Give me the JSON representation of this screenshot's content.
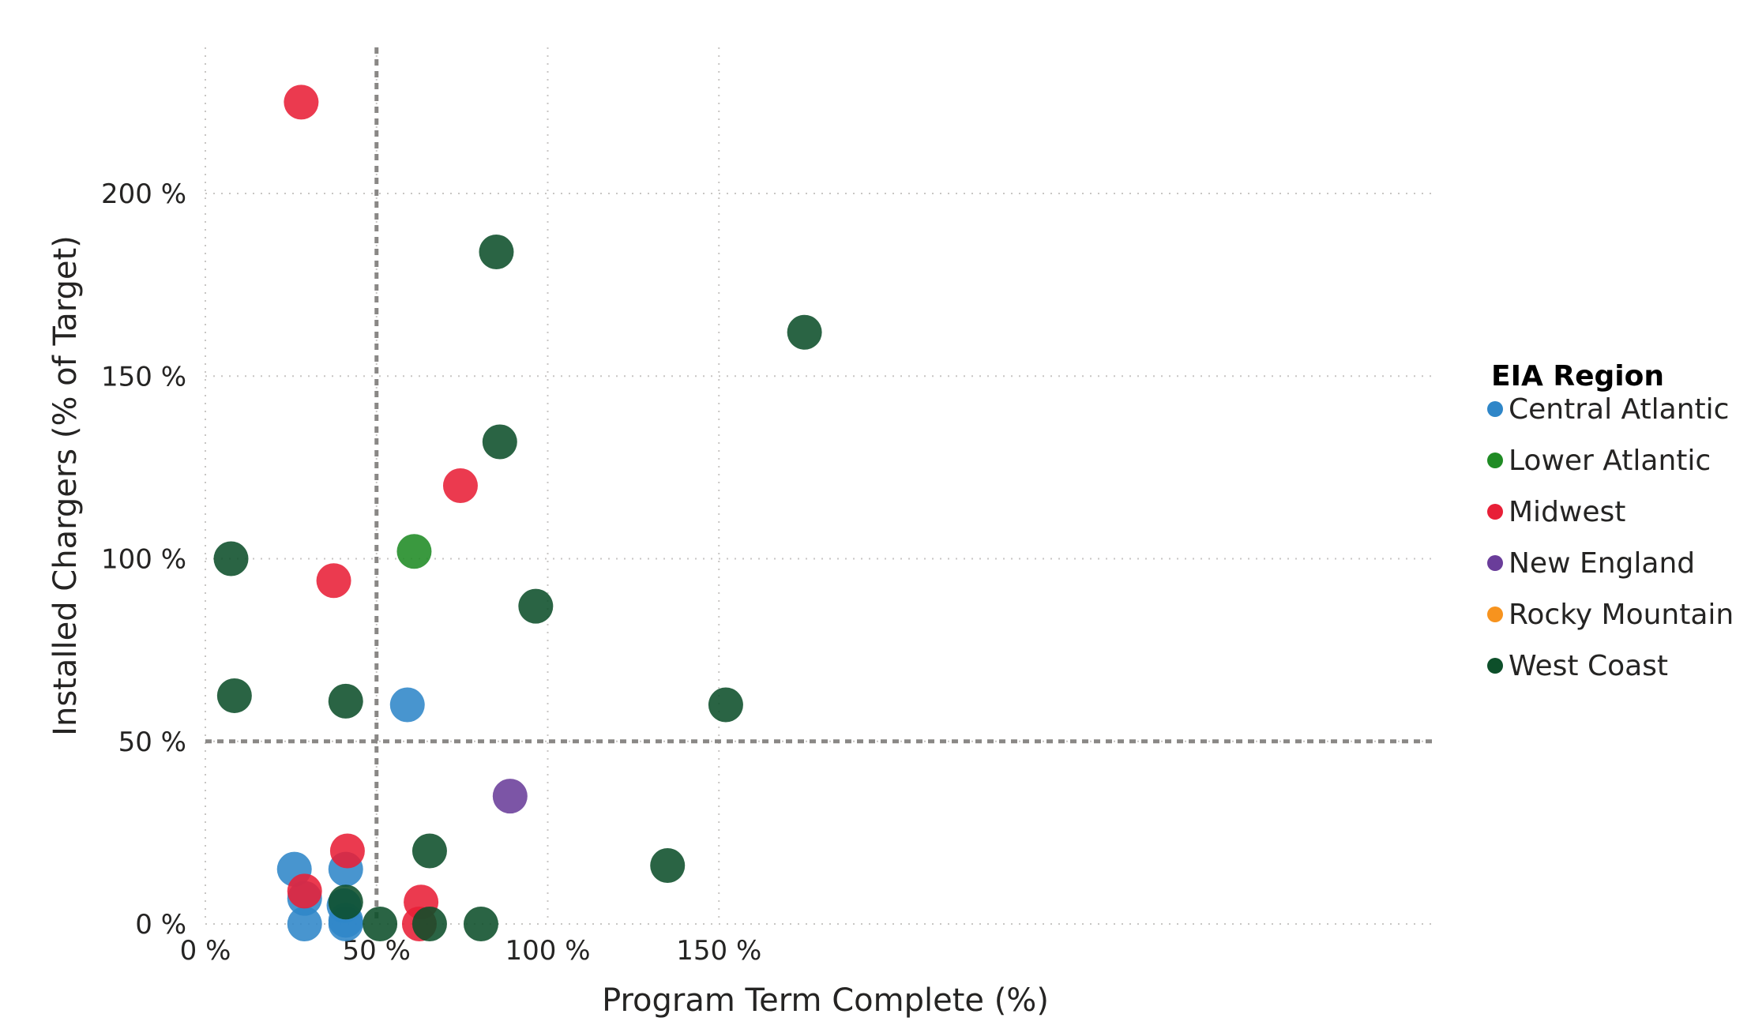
{
  "chart_data": {
    "type": "scatter",
    "title": "",
    "xlabel": "Program Term Complete (%)",
    "ylabel": "Installed Chargers (% of Target)",
    "xlim": [
      0,
      180
    ],
    "ylim": [
      0,
      240
    ],
    "x_ticks": [
      0,
      50,
      100,
      150
    ],
    "y_ticks": [
      0,
      50,
      100,
      150,
      200
    ],
    "x_tick_labels": [
      "0 %",
      "50 %",
      "100 %",
      "150 %"
    ],
    "y_tick_labels": [
      "0 %",
      "50 %",
      "100 %",
      "150 %",
      "200 %"
    ],
    "grid": true,
    "reference_lines": {
      "x": 50,
      "y": 50,
      "style": "dashed"
    },
    "legend": {
      "title": "EIA Region",
      "position": "right",
      "entries": [
        {
          "name": "Central Atlantic",
          "color": "#2f86c8"
        },
        {
          "name": "Lower Atlantic",
          "color": "#1f8b24"
        },
        {
          "name": "Midwest",
          "color": "#e81f37"
        },
        {
          "name": "New England",
          "color": "#6a3d9a"
        },
        {
          "name": "Rocky Mountain",
          "color": "#f7931e"
        },
        {
          "name": "West Coast",
          "color": "#0d4f2a"
        }
      ]
    },
    "series": [
      {
        "name": "Central Atlantic",
        "color": "#2f86c8",
        "points": [
          [
            26,
            15
          ],
          [
            29,
            7
          ],
          [
            29,
            0
          ],
          [
            41,
            15
          ],
          [
            40.5,
            5
          ],
          [
            41,
            1
          ],
          [
            41,
            0
          ],
          [
            59,
            60
          ]
        ]
      },
      {
        "name": "Lower Atlantic",
        "color": "#1f8b24",
        "points": [
          [
            61,
            102
          ]
        ]
      },
      {
        "name": "Midwest",
        "color": "#e81f37",
        "points": [
          [
            28,
            225
          ],
          [
            37.5,
            94
          ],
          [
            74.5,
            120
          ],
          [
            29,
            9
          ],
          [
            41.5,
            20
          ],
          [
            63,
            6
          ],
          [
            62.5,
            0
          ]
        ]
      },
      {
        "name": "New England",
        "color": "#6a3d9a",
        "points": [
          [
            89,
            35
          ]
        ]
      },
      {
        "name": "Rocky Mountain",
        "color": "#f7931e",
        "points": []
      },
      {
        "name": "West Coast",
        "color": "#0d4f2a",
        "points": [
          [
            7.5,
            100
          ],
          [
            8.5,
            62.5
          ],
          [
            41,
            61
          ],
          [
            41,
            6
          ],
          [
            51,
            0
          ],
          [
            65.5,
            20
          ],
          [
            65.5,
            0
          ],
          [
            80.5,
            0
          ],
          [
            85,
            184
          ],
          [
            86,
            132
          ],
          [
            96.5,
            87
          ],
          [
            135,
            16
          ],
          [
            152,
            60
          ],
          [
            175,
            162
          ]
        ]
      }
    ]
  }
}
